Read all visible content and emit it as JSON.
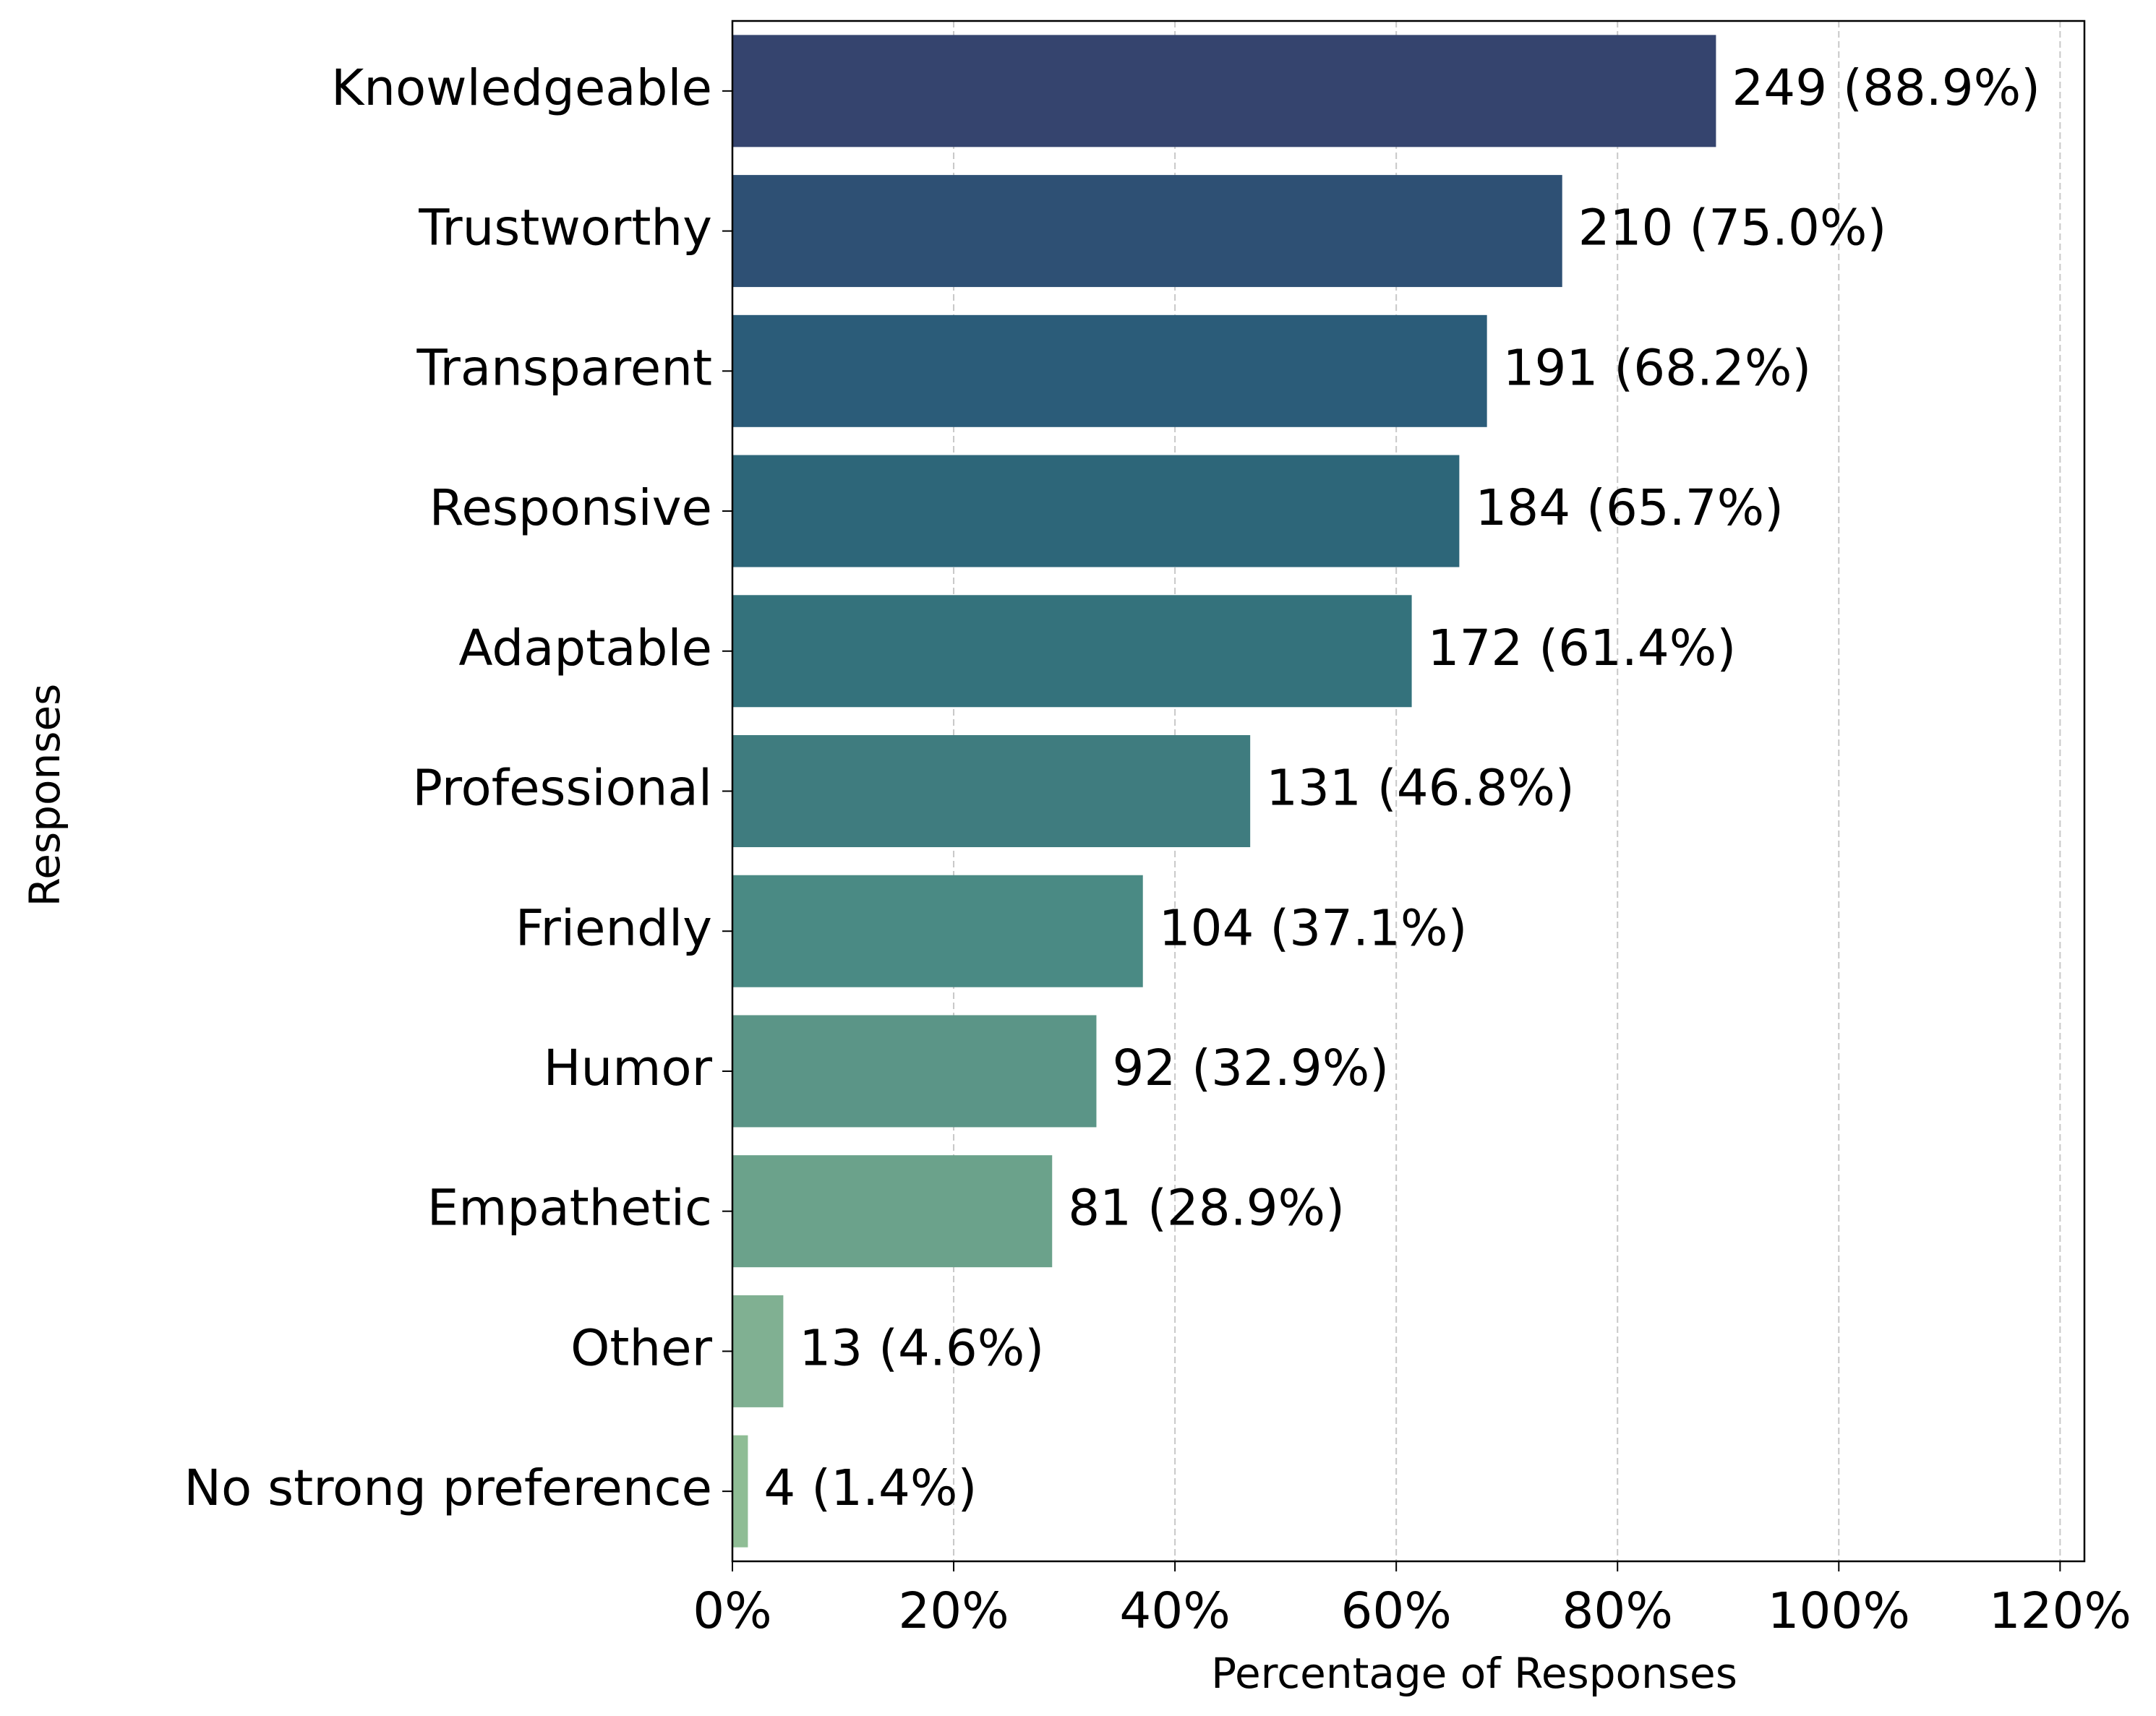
{
  "chart_data": {
    "type": "bar",
    "orientation": "horizontal",
    "x_label": "Percentage of Responses",
    "y_label": "Responses",
    "categories": [
      "Knowledgeable",
      "Trustworthy",
      "Transparent",
      "Responsive",
      "Adaptable",
      "Professional",
      "Friendly",
      "Humor",
      "Empathetic",
      "Other",
      "No strong preference"
    ],
    "values": [
      88.9,
      75.0,
      68.2,
      65.7,
      61.4,
      46.8,
      37.1,
      32.9,
      28.9,
      4.6,
      1.4
    ],
    "value_labels": [
      "249 (88.9%)",
      "210 (75.0%)",
      "191 (68.2%)",
      "184 (65.7%)",
      "172 (61.4%)",
      "131 (46.8%)",
      "104 (37.1%)",
      "92 (32.9%)",
      "81 (28.9%)",
      "13 (4.6%)",
      "4 (1.4%)"
    ],
    "colors": [
      "#35446e",
      "#2e5074",
      "#2b5c79",
      "#2d6679",
      "#34727c",
      "#3f7c7f",
      "#4a8a84",
      "#5b9587",
      "#6ba28b",
      "#80b092",
      "#8fbd95"
    ],
    "xlim": [
      0,
      122.2
    ],
    "xticks": [
      {
        "value": 0,
        "label": "0%"
      },
      {
        "value": 20,
        "label": "20%"
      },
      {
        "value": 40,
        "label": "40%"
      },
      {
        "value": 60,
        "label": "60%"
      },
      {
        "value": 80,
        "label": "80%"
      },
      {
        "value": 100,
        "label": "100%"
      },
      {
        "value": 120,
        "label": "120%"
      }
    ],
    "grid": true,
    "grid_style": "dashed"
  }
}
